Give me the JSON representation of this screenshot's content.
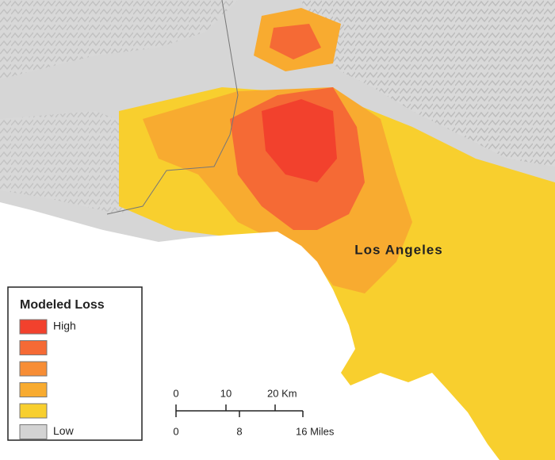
{
  "map_label": "Los Angeles",
  "legend": {
    "title": "Modeled Loss",
    "items": [
      {
        "label": "High",
        "color": "#f2412d"
      },
      {
        "color": "#f56a35"
      },
      {
        "color": "#f78d35"
      },
      {
        "color": "#f8ab30"
      },
      {
        "color": "#f8cf2e"
      },
      {
        "label": "Low",
        "color": "#d3d3d3"
      }
    ]
  },
  "scale_bar": {
    "km_labels": [
      "0",
      "10",
      "20 Km"
    ],
    "mile_labels": [
      "0",
      "8",
      "16 Miles"
    ]
  }
}
